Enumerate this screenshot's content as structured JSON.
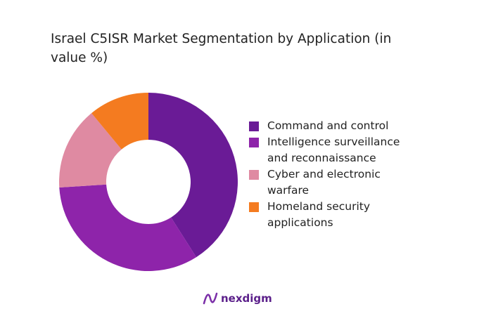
{
  "chart_data": {
    "type": "donut",
    "title": "Israel C5ISR Market Segmentation by Application (in value %)",
    "categories": [
      "Command and control",
      "Intelligence surveillance and reconnaissance",
      "Cyber and electronic warfare",
      "Homeland security applications"
    ],
    "values": [
      41,
      33,
      15,
      11
    ],
    "colors": [
      "#6a1b96",
      "#8e24aa",
      "#df8aa2",
      "#f47b20"
    ],
    "legend": "right"
  },
  "logo": "nexdigm"
}
